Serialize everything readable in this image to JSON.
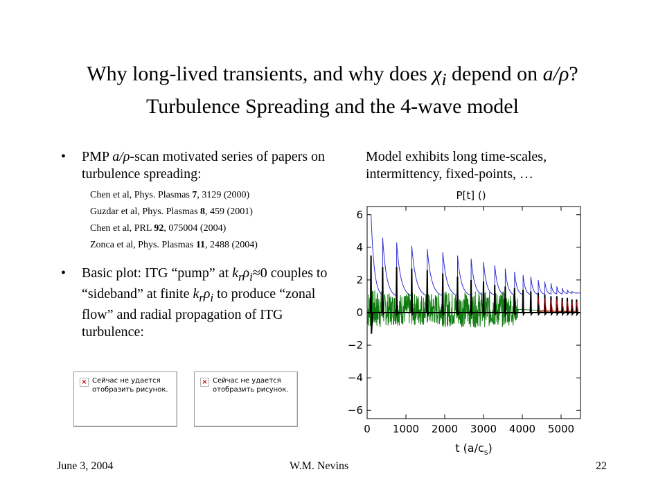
{
  "title": {
    "line1_a": "Why long-lived transients, and why does ",
    "chi": "χ",
    "chi_sub": "i",
    "line1_b": " depend on ",
    "ratio": "a/ρ",
    "line1_c": "?",
    "line2": "Turbulence Spreading and the 4-wave model"
  },
  "left": {
    "bullet": "•",
    "b1_a": "PMP ",
    "b1_ratio": "a/ρ",
    "b1_b": "-scan motivated series of papers on turbulence spreading:",
    "refs": [
      {
        "pre": "Chen et al, Phys. Plasmas ",
        "vol": "7",
        "post": ", 3129 (2000)"
      },
      {
        "pre": "Guzdar et al, Phys. Plasmas ",
        "vol": "8",
        "post": ", 459 (2001)"
      },
      {
        "pre": "Chen et al, PRL ",
        "vol": "92",
        "post": ", 075004 (2004)"
      },
      {
        "pre": "Zonca et al, Phys. Plasmas ",
        "vol": "11",
        "post": ", 2488 (2004)"
      }
    ],
    "b2_a": "Basic plot: ITG “pump” at ",
    "k": "k",
    "kr_sub": "r",
    "rho": "ρ",
    "rho_sub": "i",
    "b2_b": "≈0 couples to “sideband” at finite ",
    "b2_c": " to produce “zonal flow” and radial propagation of ITG turbulence:"
  },
  "broken_images": [
    {
      "line1": "Сейчас не удается",
      "line2": "отобразить рисунок."
    },
    {
      "line1": "Сейчас не удается",
      "line2": "отобразить рисунок."
    }
  ],
  "right_text": "Model exhibits long time-scales, intermittency, fixed-points, …",
  "chart_data": {
    "type": "line",
    "title": "P[t] ()",
    "xlabel": "t (a/c",
    "xlabel_sub": "s",
    "xlabel_end": ")",
    "xlim": [
      0,
      5500
    ],
    "ylim": [
      -6.5,
      6.5
    ],
    "xticks": [
      0,
      1000,
      2000,
      3000,
      4000,
      5000
    ],
    "yticks": [
      -6,
      -4,
      -2,
      0,
      2,
      4,
      6
    ],
    "xtick_labels": [
      "0",
      "1000",
      "2000",
      "3000",
      "4000",
      "5000"
    ],
    "ytick_labels": [
      "−6",
      "−4",
      "−2",
      "0",
      "2",
      "4",
      "6"
    ],
    "peaks_x": [
      100,
      400,
      760,
      1150,
      1550,
      1950,
      2330,
      2680,
      3000,
      3290,
      3560,
      3800,
      4020,
      4220,
      4410,
      4580,
      4740,
      4890,
      5030,
      5160,
      5280,
      5400
    ],
    "blue_peaks": [
      6.0,
      4.6,
      4.3,
      4.1,
      3.9,
      3.7,
      3.5,
      3.3,
      3.1,
      2.9,
      2.7,
      2.5,
      2.3,
      2.2,
      2.0,
      1.9,
      1.8,
      1.6,
      1.5,
      1.4,
      1.3,
      1.2
    ],
    "blue_floor": [
      0.9,
      1.2
    ],
    "black_peaks": [
      3.5,
      2.8,
      2.8,
      2.7,
      2.6,
      2.4,
      2.2,
      2.0,
      1.9,
      1.7,
      1.6,
      1.5,
      1.4,
      1.3,
      1.2,
      1.1,
      1.0,
      1.0,
      0.9,
      0.9,
      0.8,
      0.8
    ],
    "black_floor": 0.0,
    "black_min": -1.3,
    "green_peaks": [
      1.2,
      1.0,
      1.0,
      1.0,
      1.0,
      1.1,
      1.1,
      1.1,
      1.1,
      1.1,
      1.0,
      0.8,
      0.6,
      0.4
    ],
    "green_floor": 0.2,
    "colors": {
      "blue": "#2f2fd0",
      "green": "#0f7a0f",
      "black": "#000000",
      "red": "#b01010"
    }
  },
  "footer": {
    "date": "June 3, 2004",
    "author": "W.M. Nevins",
    "page": "22"
  }
}
